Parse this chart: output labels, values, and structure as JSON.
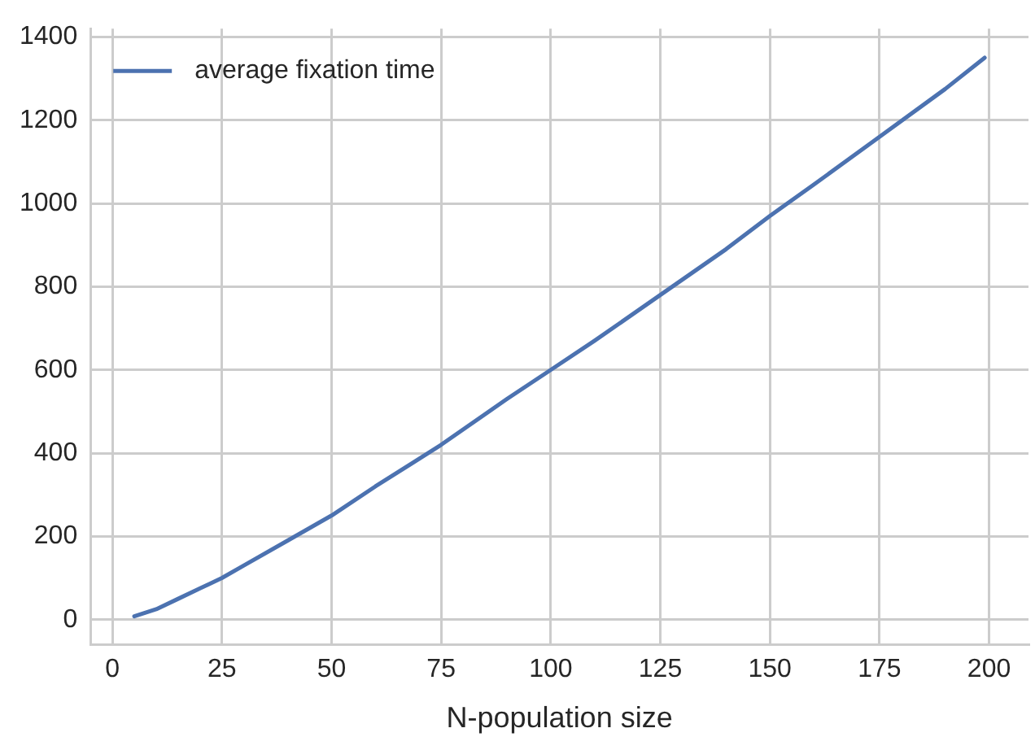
{
  "chart_data": {
    "type": "line",
    "xlabel": "N-population size",
    "x": [
      5,
      10,
      15,
      20,
      25,
      30,
      40,
      50,
      60,
      75,
      90,
      100,
      110,
      125,
      140,
      150,
      160,
      175,
      190,
      199
    ],
    "series": [
      {
        "name": "average fixation time",
        "color": "#4c72b0",
        "values": [
          8,
          25,
          50,
          75,
          100,
          130,
          190,
          250,
          320,
          420,
          530,
          600,
          670,
          780,
          890,
          970,
          1045,
          1160,
          1275,
          1350
        ]
      }
    ],
    "xlim": [
      -5,
      209
    ],
    "xticks": [
      0,
      25,
      50,
      75,
      100,
      125,
      150,
      175,
      200
    ],
    "ylim": [
      -60,
      1420
    ],
    "yticks": [
      0,
      200,
      400,
      600,
      800,
      1000,
      1200,
      1400
    ],
    "grid": true,
    "legend": "top left",
    "marker": "none",
    "line_style": "solid"
  }
}
